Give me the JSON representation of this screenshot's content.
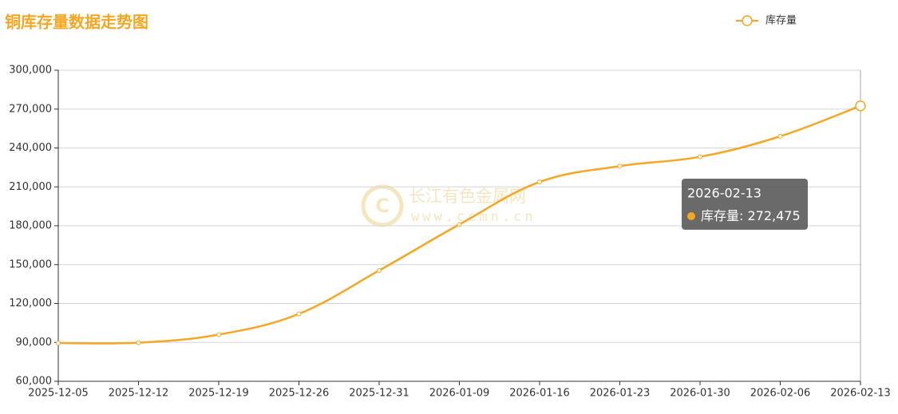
{
  "chart_data": {
    "type": "line",
    "title": "铜库存量数据走势图",
    "categories": [
      "2025-12-05",
      "2025-12-12",
      "2025-12-19",
      "2025-12-26",
      "2025-12-31",
      "2026-01-09",
      "2026-01-16",
      "2026-01-23",
      "2026-01-30",
      "2026-02-06",
      "2026-02-13"
    ],
    "series": [
      {
        "name": "库存量",
        "color": "#f5a623",
        "values": [
          89500,
          89800,
          96000,
          112000,
          145500,
          181000,
          213800,
          226000,
          233200,
          249000,
          272475
        ]
      }
    ],
    "ylim": [
      60000,
      300000
    ],
    "yticks": [
      {
        "value": 60000,
        "label": "60,000"
      },
      {
        "value": 90000,
        "label": "90,000"
      },
      {
        "value": 120000,
        "label": "120,000"
      },
      {
        "value": 150000,
        "label": "150,000"
      },
      {
        "value": 180000,
        "label": "180,000"
      },
      {
        "value": 210000,
        "label": "210,000"
      },
      {
        "value": 240000,
        "label": "240,000"
      },
      {
        "value": 270000,
        "label": "270,000"
      },
      {
        "value": 300000,
        "label": "300,000"
      }
    ],
    "grid": true,
    "legend": "top-right",
    "tooltip": {
      "value_label": "272,475"
    },
    "watermark": [
      "长江有色金属网",
      "www.ccmn.cn"
    ]
  }
}
